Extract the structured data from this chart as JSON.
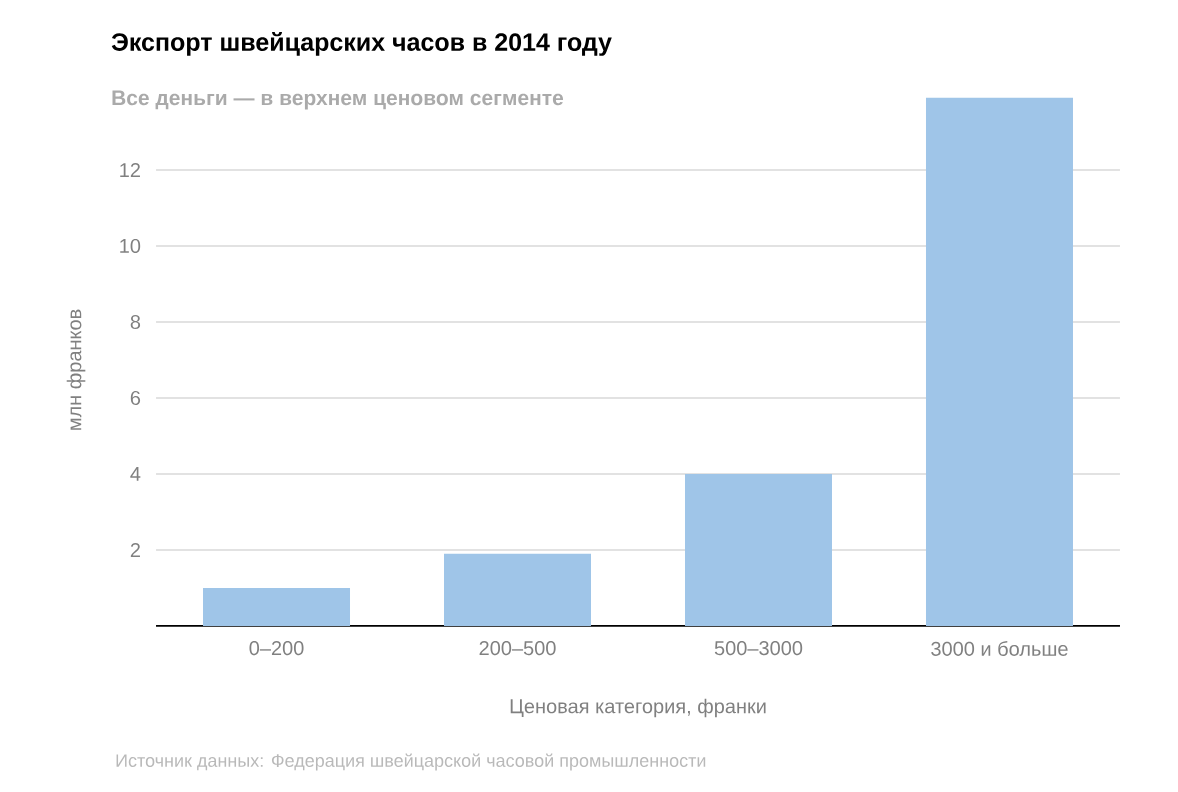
{
  "chart_data": {
    "type": "bar",
    "title": "Экспорт швейцарских часов в 2014 году",
    "subtitle": "Все деньги — в верхнем ценовом сегменте",
    "xlabel": "Ценовая категория, франки",
    "ylabel": "млн франков",
    "categories": [
      "0–200",
      "200–500",
      "500–3000",
      "3000 и больше"
    ],
    "values": [
      1.0,
      1.9,
      4.0,
      13.9
    ],
    "color": "#9fc5e8",
    "ylim": [
      0,
      14
    ],
    "yticks": [
      2,
      4,
      6,
      8,
      10,
      12
    ],
    "grid": "y",
    "annotations": [
      "Источник данных: Федерация швейцарской часовой промышленности"
    ]
  }
}
